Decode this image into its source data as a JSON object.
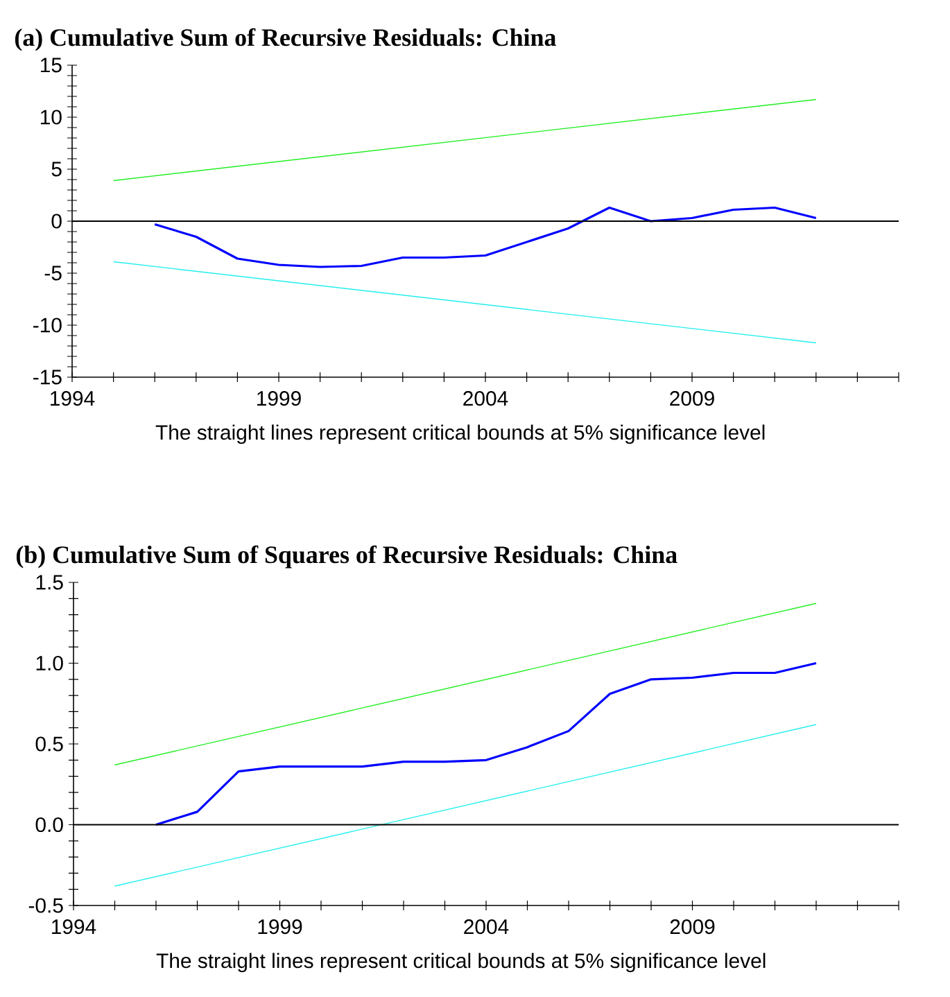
{
  "chart_data": [
    {
      "type": "line",
      "title": "(a) Cumulative Sum of Recursive Residuals: China",
      "annotations": [
        "The straight lines represent critical bounds at 5% significance level"
      ],
      "xlim": [
        1994,
        2014
      ],
      "xticks": [
        1994,
        {
          "value": 1995,
          "label": null
        },
        {
          "value": 1996,
          "label": null
        },
        {
          "value": 1997,
          "label": null
        },
        {
          "value": 1998,
          "label": null
        },
        1999,
        {
          "value": 2000,
          "label": null
        },
        {
          "value": 2001,
          "label": null
        },
        {
          "value": 2002,
          "label": null
        },
        {
          "value": 2003,
          "label": null
        },
        2004,
        {
          "value": 2005,
          "label": null
        },
        {
          "value": 2006,
          "label": null
        },
        {
          "value": 2007,
          "label": null
        },
        {
          "value": 2008,
          "label": null
        },
        2009,
        {
          "value": 2010,
          "label": null
        },
        {
          "value": 2011,
          "label": null
        },
        {
          "value": 2012,
          "label": null
        },
        {
          "value": 2013,
          "label": null
        },
        {
          "value": 2014,
          "label": null
        }
      ],
      "ylim": [
        -15,
        15
      ],
      "yticks": [
        -15,
        {
          "value": -14,
          "label": null
        },
        {
          "value": -13,
          "label": null
        },
        {
          "value": -12,
          "label": null
        },
        {
          "value": -11,
          "label": null
        },
        -10,
        {
          "value": -9,
          "label": null
        },
        {
          "value": -8,
          "label": null
        },
        {
          "value": -7,
          "label": null
        },
        {
          "value": -6,
          "label": null
        },
        -5,
        {
          "value": -4,
          "label": null
        },
        {
          "value": -3,
          "label": null
        },
        {
          "value": -2,
          "label": null
        },
        {
          "value": -1,
          "label": null
        },
        0,
        {
          "value": 1,
          "label": null
        },
        {
          "value": 2,
          "label": null
        },
        {
          "value": 3,
          "label": null
        },
        {
          "value": 4,
          "label": null
        },
        5,
        {
          "value": 6,
          "label": null
        },
        {
          "value": 7,
          "label": null
        },
        {
          "value": 8,
          "label": null
        },
        {
          "value": 9,
          "label": null
        },
        10,
        {
          "value": 11,
          "label": null
        },
        {
          "value": 12,
          "label": null
        },
        {
          "value": 13,
          "label": null
        },
        {
          "value": 14,
          "label": null
        },
        15
      ],
      "ref_lines": [
        {
          "axis": "y",
          "value": 0,
          "color": "#000000"
        }
      ],
      "series": [
        {
          "color": "#0000ff",
          "x": [
            1996,
            1997,
            1998,
            1999,
            2000,
            2001,
            2002,
            2003,
            2004,
            2005,
            2006,
            2007,
            2008,
            2009,
            2010,
            2011,
            2012
          ],
          "values": [
            -0.3,
            -1.5,
            -3.6,
            -4.2,
            -4.4,
            -4.3,
            -3.5,
            -3.5,
            -3.3,
            -2.0,
            -0.7,
            1.3,
            0.0,
            0.3,
            1.1,
            1.3,
            0.3
          ]
        },
        {
          "color": "#22ee22",
          "x": [
            1995,
            2012
          ],
          "values": [
            3.9,
            11.7
          ]
        },
        {
          "color": "#22eeee",
          "x": [
            1995,
            2012
          ],
          "values": [
            -3.9,
            -11.7
          ]
        }
      ]
    },
    {
      "type": "line",
      "title": "(b) Cumulative Sum of Squares of Recursive Residuals: China",
      "annotations": [
        "The straight lines represent critical bounds at 5% significance level"
      ],
      "xlim": [
        1994,
        2014
      ],
      "xticks": [
        1994,
        {
          "value": 1995,
          "label": null
        },
        {
          "value": 1996,
          "label": null
        },
        {
          "value": 1997,
          "label": null
        },
        {
          "value": 1998,
          "label": null
        },
        1999,
        {
          "value": 2000,
          "label": null
        },
        {
          "value": 2001,
          "label": null
        },
        {
          "value": 2002,
          "label": null
        },
        {
          "value": 2003,
          "label": null
        },
        2004,
        {
          "value": 2005,
          "label": null
        },
        {
          "value": 2006,
          "label": null
        },
        {
          "value": 2007,
          "label": null
        },
        {
          "value": 2008,
          "label": null
        },
        2009,
        {
          "value": 2010,
          "label": null
        },
        {
          "value": 2011,
          "label": null
        },
        {
          "value": 2012,
          "label": null
        },
        {
          "value": 2013,
          "label": null
        },
        {
          "value": 2014,
          "label": null
        }
      ],
      "ylim": [
        -0.5,
        1.5
      ],
      "yticks": [
        -0.5,
        {
          "value": -0.4,
          "label": null
        },
        {
          "value": -0.3,
          "label": null
        },
        {
          "value": -0.2,
          "label": null
        },
        {
          "value": -0.1,
          "label": null
        },
        {
          "value": 0,
          "label": "0.0"
        },
        {
          "value": 0.1,
          "label": null
        },
        {
          "value": 0.2,
          "label": null
        },
        {
          "value": 0.3,
          "label": null
        },
        {
          "value": 0.4,
          "label": null
        },
        0.5,
        {
          "value": 0.6,
          "label": null
        },
        {
          "value": 0.7,
          "label": null
        },
        {
          "value": 0.8,
          "label": null
        },
        {
          "value": 0.9,
          "label": null
        },
        {
          "value": 1,
          "label": "1.0"
        },
        {
          "value": 1.1,
          "label": null
        },
        {
          "value": 1.2,
          "label": null
        },
        {
          "value": 1.3,
          "label": null
        },
        {
          "value": 1.4,
          "label": null
        },
        1.5
      ],
      "ref_lines": [
        {
          "axis": "y",
          "value": 0,
          "color": "#000000"
        }
      ],
      "series": [
        {
          "color": "#0000ff",
          "x": [
            1996,
            1997,
            1998,
            1999,
            2000,
            2001,
            2002,
            2003,
            2004,
            2005,
            2006,
            2007,
            2008,
            2009,
            2010,
            2011,
            2012
          ],
          "values": [
            0.0,
            0.08,
            0.33,
            0.36,
            0.36,
            0.36,
            0.39,
            0.39,
            0.4,
            0.48,
            0.58,
            0.81,
            0.9,
            0.91,
            0.94,
            0.94,
            1.0
          ]
        },
        {
          "color": "#22ee22",
          "x": [
            1995,
            2012
          ],
          "values": [
            0.37,
            1.37
          ]
        },
        {
          "color": "#22eeee",
          "x": [
            1995,
            2012
          ],
          "values": [
            -0.38,
            0.62
          ]
        }
      ]
    }
  ]
}
